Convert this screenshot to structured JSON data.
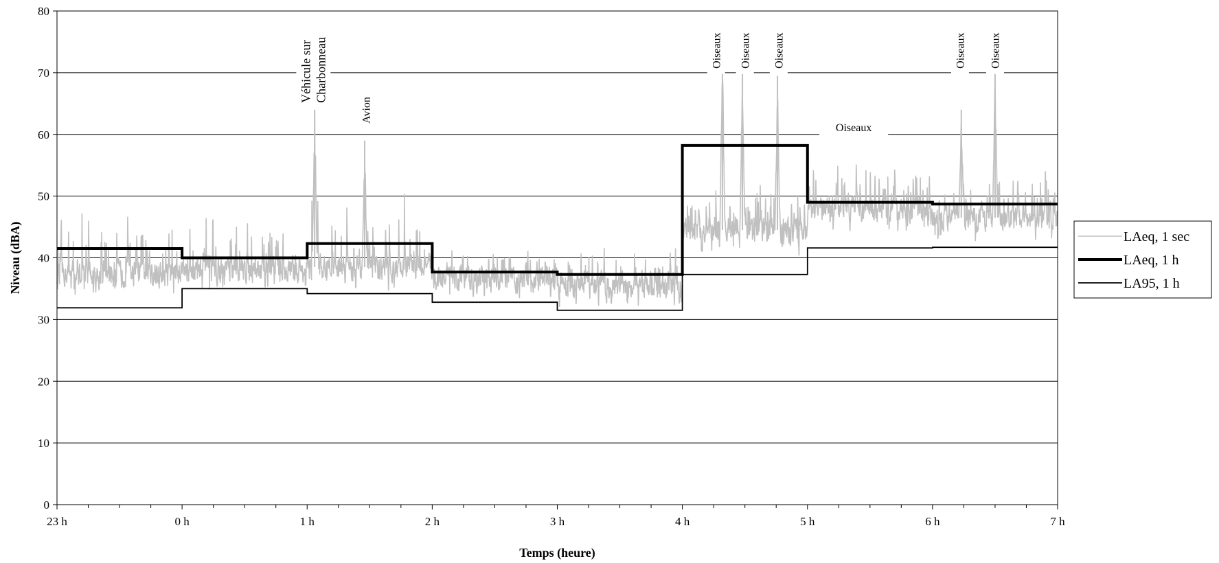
{
  "chart_data": {
    "type": "line",
    "title": "",
    "xlabel": "Temps (heure)",
    "ylabel": "Niveau (dBA)",
    "ylim": [
      0,
      80
    ],
    "yticks": [
      0,
      10,
      20,
      30,
      40,
      50,
      60,
      70,
      80
    ],
    "xlim": [
      23,
      31
    ],
    "xtick_values": [
      23,
      24,
      25,
      26,
      27,
      28,
      29,
      30,
      31
    ],
    "xtick_labels": [
      "23 h",
      "0 h",
      "1 h",
      "2 h",
      "3 h",
      "4 h",
      "5 h",
      "6 h",
      "7 h"
    ],
    "grid": "horizontal",
    "legend_position": "right",
    "series": [
      {
        "name": "LAeq, 1 sec",
        "color": "#c0c0c0",
        "style": "noisy-line",
        "hourly_base": [
          37.5,
          38.0,
          38.5,
          36.5,
          35.5,
          44.5,
          48.0,
          46.5
        ],
        "hourly_peak": [
          57,
          53,
          64,
          43,
          45,
          57,
          60,
          58
        ],
        "peaks": [
          {
            "x": 25.06,
            "y": 64
          },
          {
            "x": 25.46,
            "y": 59
          },
          {
            "x": 28.32,
            "y": 74.5
          },
          {
            "x": 28.48,
            "y": 71
          },
          {
            "x": 28.76,
            "y": 69.5
          },
          {
            "x": 30.23,
            "y": 64
          },
          {
            "x": 30.5,
            "y": 70
          }
        ]
      },
      {
        "name": "LAeq, 1 h",
        "color": "#000000",
        "style": "thick-step",
        "values": [
          41.5,
          40.0,
          42.3,
          37.7,
          37.3,
          58.2,
          49.0,
          48.7
        ]
      },
      {
        "name": "LA95, 1 h",
        "color": "#000000",
        "style": "thin-step",
        "values": [
          31.9,
          35.0,
          34.2,
          32.8,
          31.5,
          37.3,
          41.6,
          41.7
        ]
      }
    ],
    "annotations": [
      {
        "lines": [
          "Véhicule sur",
          "Charbonneau"
        ],
        "x": 25.05
      },
      {
        "lines": [
          "Avion"
        ],
        "x": 25.47
      },
      {
        "lines": [
          "Oiseaux"
        ],
        "x": 28.27
      },
      {
        "lines": [
          "Oiseaux"
        ],
        "x": 28.5
      },
      {
        "lines": [
          "Oiseaux"
        ],
        "x": 28.77
      },
      {
        "lines": [
          "Oiseaux"
        ],
        "y": 60,
        "x": 29.37
      },
      {
        "lines": [
          "Oiseaux"
        ],
        "x": 30.22
      },
      {
        "lines": [
          "Oiseaux"
        ],
        "x": 30.5
      }
    ]
  }
}
